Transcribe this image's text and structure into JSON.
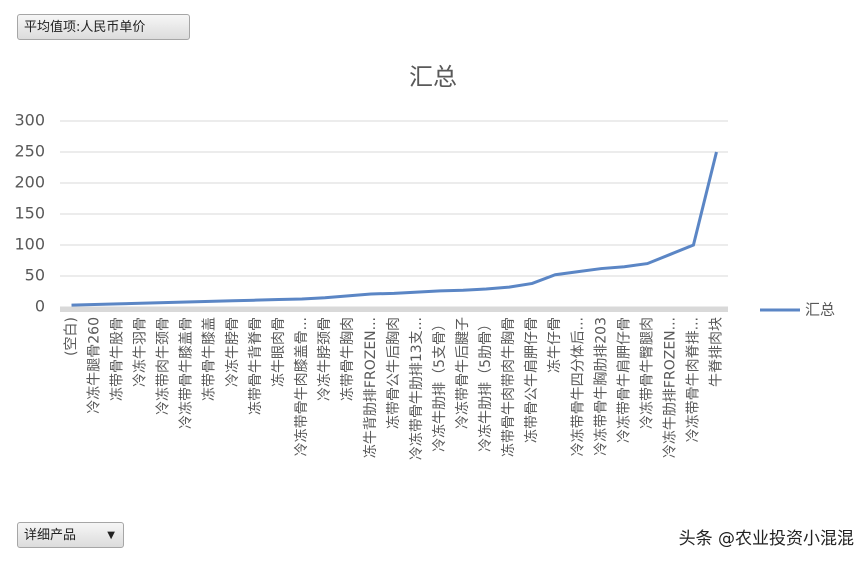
{
  "field_button": "平均值项:人民币单价",
  "axis_button": "详细产品",
  "watermark": "头条 @农业投资小混混",
  "chart_data": {
    "type": "line",
    "title": "汇总",
    "categories": [
      "(空白)",
      "冷冻牛腿骨260",
      "冻带骨牛股骨",
      "冷冻牛羽骨",
      "冷冻带肉牛颈骨",
      "冷冻带骨牛膝盖骨",
      "冻带骨牛膝盖",
      "冷冻牛脖骨",
      "冻带骨牛背脊骨",
      "冻牛眼肉骨",
      "冷冻带骨牛肉膝盖骨...",
      "冷冻牛脖颈骨",
      "冻带骨牛胸肉",
      "冻牛背肋排FROZEN...",
      "冻带骨公牛后胸肉",
      "冷冻带骨牛肋排13支...",
      "冷冻牛肋排（5支骨）",
      "冷冻带骨牛后腱子",
      "冷冻牛肋排（5肋骨）",
      "冻带骨牛肉带肉牛胸骨",
      "冻带骨公牛肩胛仔骨",
      "冻牛仔骨",
      "冷冻带骨牛四分体后...",
      "冷冻带骨牛胸肋排203",
      "冷冻带骨牛肩胛仔骨",
      "冷冻带骨牛臀腿肉",
      "冷冻牛肋排FROZEN...",
      "冷冻带骨牛肉脊排...",
      "牛脊排肉块"
    ],
    "series": [
      {
        "name": "汇总",
        "color": "#5b86c5",
        "values": [
          3,
          4,
          5,
          6,
          7,
          8,
          9,
          10,
          11,
          12,
          13,
          15,
          18,
          21,
          22,
          24,
          26,
          27,
          29,
          32,
          38,
          52,
          57,
          62,
          65,
          70,
          85,
          100,
          250
        ]
      }
    ],
    "ylim": [
      0,
      300
    ],
    "yticks": [
      0,
      50,
      100,
      150,
      200,
      250,
      300
    ],
    "grid": true,
    "legend": "right"
  }
}
